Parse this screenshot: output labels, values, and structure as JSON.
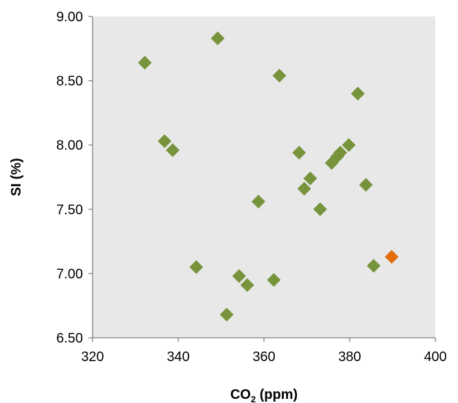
{
  "chart_data": {
    "type": "scatter",
    "xlabel": "CO",
    "xlabel_subscript": "2",
    "xlabel_suffix": " (ppm)",
    "ylabel": "SI (%)",
    "xlim": [
      320,
      400
    ],
    "ylim": [
      6.5,
      9.0
    ],
    "x_ticks": [
      320,
      340,
      360,
      380,
      400
    ],
    "x_tick_labels": [
      "320",
      "340",
      "360",
      "380",
      "400"
    ],
    "y_ticks": [
      6.5,
      7.0,
      7.5,
      8.0,
      8.5,
      9.0
    ],
    "y_tick_labels": [
      "6.50",
      "7.00",
      "7.50",
      "8.00",
      "8.50",
      "9.00"
    ],
    "grid": false,
    "plot_background": "#e8e8e8",
    "series": [
      {
        "color": "#77933c",
        "marker": "diamond",
        "points": [
          {
            "x": 332.2,
            "y": 8.64
          },
          {
            "x": 336.8,
            "y": 8.03
          },
          {
            "x": 338.7,
            "y": 7.96
          },
          {
            "x": 344.2,
            "y": 7.05
          },
          {
            "x": 349.2,
            "y": 8.83
          },
          {
            "x": 351.3,
            "y": 6.68
          },
          {
            "x": 354.2,
            "y": 6.98
          },
          {
            "x": 356.1,
            "y": 6.91
          },
          {
            "x": 358.7,
            "y": 7.56
          },
          {
            "x": 362.3,
            "y": 6.95
          },
          {
            "x": 363.6,
            "y": 8.54
          },
          {
            "x": 368.2,
            "y": 7.94
          },
          {
            "x": 369.4,
            "y": 7.66
          },
          {
            "x": 370.8,
            "y": 7.74
          },
          {
            "x": 373.1,
            "y": 7.5
          },
          {
            "x": 375.8,
            "y": 7.86
          },
          {
            "x": 377.1,
            "y": 7.91
          },
          {
            "x": 377.8,
            "y": 7.94
          },
          {
            "x": 379.8,
            "y": 8.0
          },
          {
            "x": 381.9,
            "y": 8.4
          },
          {
            "x": 383.8,
            "y": 7.69
          },
          {
            "x": 385.6,
            "y": 7.06
          }
        ]
      },
      {
        "color": "#e36c0a",
        "marker": "diamond",
        "points": [
          {
            "x": 389.8,
            "y": 7.13
          }
        ]
      }
    ]
  }
}
